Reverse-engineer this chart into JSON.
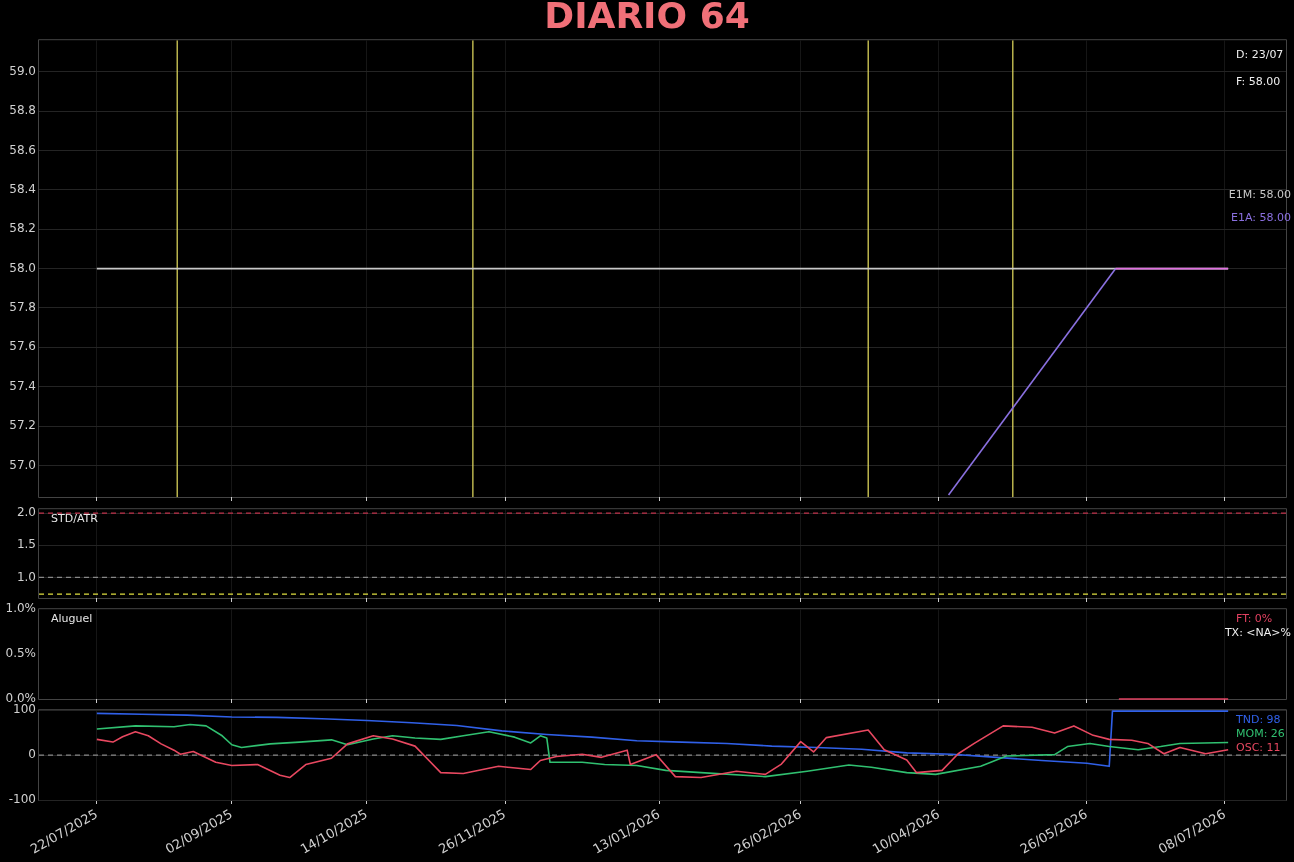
{
  "chart_data": [
    {
      "type": "line",
      "title": "DIARIO 64",
      "xlim": [
        "2025-07-04",
        "2026-07-27"
      ],
      "xticks": [
        {
          "value": "2025-07-22",
          "label": null
        },
        {
          "value": "2025-09-02",
          "label": null
        },
        {
          "value": "2025-10-14",
          "label": null
        },
        {
          "value": "2025-11-26",
          "label": null
        },
        {
          "value": "2026-01-13",
          "label": null
        },
        {
          "value": "2026-02-26",
          "label": null
        },
        {
          "value": "2026-04-10",
          "label": null
        },
        {
          "value": "2026-05-26",
          "label": null
        },
        {
          "value": "2026-07-08",
          "label": null
        }
      ],
      "ylim": [
        56.84,
        59.16
      ],
      "yticks": [
        {
          "value": 57,
          "label": "57.0"
        },
        {
          "value": 57.2,
          "label": "57.2"
        },
        {
          "value": 57.4,
          "label": "57.4"
        },
        {
          "value": 57.6,
          "label": "57.6"
        },
        {
          "value": 57.8,
          "label": "57.8"
        },
        {
          "value": 58,
          "label": "58.0"
        },
        {
          "value": 58.2,
          "label": "58.2"
        },
        {
          "value": 58.4,
          "label": "58.4"
        },
        {
          "value": 58.6,
          "label": "58.6"
        },
        {
          "value": 58.8,
          "label": "58.8"
        },
        {
          "value": 59,
          "label": "59.0"
        }
      ],
      "grid": true,
      "tick_labels": "y",
      "legend": "right",
      "annotations": [
        "D: 23/07",
        "F: 58.00"
      ],
      "ref_lines": [
        {
          "axis": "x",
          "value": "2025-08-16",
          "color": "#e8e060"
        },
        {
          "axis": "x",
          "value": "2025-11-16",
          "color": "#e8e060"
        },
        {
          "axis": "x",
          "value": "2026-03-19",
          "color": "#e8e060"
        },
        {
          "axis": "x",
          "value": "2026-05-03",
          "color": "#e8e060"
        }
      ],
      "series": [
        {
          "name": "E1M: 58.00",
          "color": "#c8c8c8",
          "x": [
            "2025-07-22",
            "2026-07-09"
          ],
          "values": [
            58,
            58
          ]
        },
        {
          "name": "E1A: 58.00",
          "color": "#8a70e0",
          "x": [
            "2026-04-13",
            "2026-06-04"
          ],
          "values": [
            56.85,
            58
          ]
        },
        {
          "color": "#e070e0",
          "x": [
            "2026-06-04",
            "2026-07-09"
          ],
          "values": [
            58,
            58
          ]
        }
      ]
    },
    {
      "type": "line",
      "subtitle": "STD/ATR",
      "xlim": [
        "2025-07-04",
        "2026-07-27"
      ],
      "xticks": [
        {
          "value": "2025-07-22",
          "label": null
        },
        {
          "value": "2025-09-02",
          "label": null
        },
        {
          "value": "2025-10-14",
          "label": null
        },
        {
          "value": "2025-11-26",
          "label": null
        },
        {
          "value": "2026-01-13",
          "label": null
        },
        {
          "value": "2026-02-26",
          "label": null
        },
        {
          "value": "2026-04-10",
          "label": null
        },
        {
          "value": "2026-05-26",
          "label": null
        },
        {
          "value": "2026-07-08",
          "label": null
        }
      ],
      "ylim": [
        0.68,
        2.06
      ],
      "yticks": [
        {
          "value": 1,
          "label": "1.0"
        },
        {
          "value": 1.5,
          "label": "1.5"
        },
        {
          "value": 2,
          "label": "2.0"
        }
      ],
      "grid": true,
      "tick_labels": "y",
      "ref_lines": [
        {
          "axis": "y",
          "value": 2,
          "color": "#c0304a",
          "line_style": "dashed"
        },
        {
          "axis": "y",
          "value": 1,
          "color": "#888888",
          "line_style": "dashed"
        },
        {
          "axis": "y",
          "value": 0.74,
          "color": "#e0e040",
          "line_style": "dashed"
        }
      ]
    },
    {
      "type": "line",
      "subtitle": "Aluguel",
      "xlim": [
        "2025-07-04",
        "2026-07-27"
      ],
      "xticks": [
        {
          "value": "2025-07-22",
          "label": null
        },
        {
          "value": "2025-09-02",
          "label": null
        },
        {
          "value": "2025-10-14",
          "label": null
        },
        {
          "value": "2025-11-26",
          "label": null
        },
        {
          "value": "2026-01-13",
          "label": null
        },
        {
          "value": "2026-02-26",
          "label": null
        },
        {
          "value": "2026-04-10",
          "label": null
        },
        {
          "value": "2026-05-26",
          "label": null
        },
        {
          "value": "2026-07-08",
          "label": null
        }
      ],
      "ylim": [
        0,
        1
      ],
      "yticks": [
        {
          "value": 0,
          "label": "0.0%"
        },
        {
          "value": 0.5,
          "label": "0.5%"
        },
        {
          "value": 1,
          "label": "1.0%"
        }
      ],
      "grid": "x",
      "tick_labels": "y",
      "legend": "top right",
      "annotations": [
        "TX: <NA>%"
      ],
      "series": [
        {
          "name": "FT: 0%",
          "color": "#e04060",
          "x": [
            "2026-06-05",
            "2026-07-09"
          ],
          "values": [
            0,
            0
          ]
        }
      ]
    },
    {
      "type": "line",
      "xlim": [
        "2025-07-04",
        "2026-07-27"
      ],
      "xticks": [
        {
          "value": "2025-07-22",
          "label": "22/07/2025"
        },
        {
          "value": "2025-09-02",
          "label": "02/09/2025"
        },
        {
          "value": "2025-10-14",
          "label": "14/10/2025"
        },
        {
          "value": "2025-11-26",
          "label": "26/11/2025"
        },
        {
          "value": "2026-01-13",
          "label": "13/01/2026"
        },
        {
          "value": "2026-02-26",
          "label": "26/02/2026"
        },
        {
          "value": "2026-04-10",
          "label": "10/04/2026"
        },
        {
          "value": "2026-05-26",
          "label": "26/05/2026"
        },
        {
          "value": "2026-07-08",
          "label": "08/07/2026"
        }
      ],
      "ylim": [
        -100,
        100
      ],
      "yticks": [
        -100,
        0,
        100
      ],
      "grid": true,
      "legend": "top right",
      "ref_lines": [
        {
          "axis": "y",
          "value": 0,
          "color": "#888888",
          "line_style": "dashed"
        }
      ],
      "series": [
        {
          "name": "TND: 98",
          "color": "#3060e8",
          "x": [
            "2025-07-22",
            "2025-08-05",
            "2025-08-19",
            "2025-09-02",
            "2025-09-16",
            "2025-09-30",
            "2025-10-14",
            "2025-10-28",
            "2025-11-11",
            "2025-11-25",
            "2025-12-09",
            "2025-12-23",
            "2026-01-06",
            "2026-01-20",
            "2026-02-03",
            "2026-02-17",
            "2026-03-03",
            "2026-03-17",
            "2026-03-31",
            "2026-04-14",
            "2026-04-28",
            "2026-05-12",
            "2026-05-26",
            "2026-06-02",
            "2026-06-03",
            "2026-07-09"
          ],
          "values": [
            93,
            91,
            89,
            85,
            84,
            81,
            77,
            72,
            66,
            54,
            46,
            40,
            32,
            29,
            26,
            20,
            17,
            13,
            5,
            2,
            -5,
            -12,
            -18,
            -25,
            98,
            98
          ]
        },
        {
          "name": "MOM: 26",
          "color": "#30c070",
          "x": [
            "2025-07-22",
            "2025-08-03",
            "2025-08-15",
            "2025-08-20",
            "2025-08-25",
            "2025-08-30",
            "2025-09-02",
            "2025-09-05",
            "2025-09-14",
            "2025-09-23",
            "2025-10-03",
            "2025-10-08",
            "2025-10-16",
            "2025-10-22",
            "2025-10-29",
            "2025-11-06",
            "2025-11-13",
            "2025-11-21",
            "2025-11-29",
            "2025-12-04",
            "2025-12-07",
            "2025-12-09",
            "2025-12-10",
            "2025-12-20",
            "2025-12-27",
            "2026-01-06",
            "2026-01-15",
            "2026-01-26",
            "2026-02-15",
            "2026-02-28",
            "2026-03-13",
            "2026-03-20",
            "2026-03-31",
            "2026-04-09",
            "2026-04-23",
            "2026-05-01",
            "2026-05-16",
            "2026-05-20",
            "2026-05-27",
            "2026-06-02",
            "2026-06-11",
            "2026-06-18",
            "2026-06-24",
            "2026-07-09"
          ],
          "values": [
            58,
            65,
            63,
            68,
            65,
            43,
            23,
            17,
            25,
            29,
            34,
            23,
            36,
            43,
            38,
            35,
            43,
            52,
            40,
            27,
            43,
            38,
            -16,
            -16,
            -21,
            -23,
            -34,
            -39,
            -48,
            -36,
            -22,
            -27,
            -39,
            -43,
            -25,
            -2,
            1,
            19,
            26,
            19,
            12,
            19,
            26,
            28
          ]
        },
        {
          "name": "OSC: 11",
          "color": "#e84860",
          "x": [
            "2025-07-22",
            "2025-07-27",
            "2025-07-30",
            "2025-08-03",
            "2025-08-07",
            "2025-08-11",
            "2025-08-15",
            "2025-08-17",
            "2025-08-21",
            "2025-08-28",
            "2025-09-02",
            "2025-09-10",
            "2025-09-17",
            "2025-09-20",
            "2025-09-25",
            "2025-10-03",
            "2025-10-08",
            "2025-10-16",
            "2025-10-22",
            "2025-10-29",
            "2025-11-06",
            "2025-11-13",
            "2025-11-24",
            "2025-12-04",
            "2025-12-07",
            "2025-12-12",
            "2025-12-20",
            "2025-12-26",
            "2026-01-03",
            "2026-01-04",
            "2026-01-12",
            "2026-01-18",
            "2026-01-26",
            "2026-02-06",
            "2026-02-15",
            "2026-02-20",
            "2026-02-26",
            "2026-03-02",
            "2026-03-06",
            "2026-03-19",
            "2026-03-24",
            "2026-03-31",
            "2026-04-03",
            "2026-04-11",
            "2026-04-16",
            "2026-04-21",
            "2026-04-30",
            "2026-05-09",
            "2026-05-16",
            "2026-05-22",
            "2026-05-28",
            "2026-06-02",
            "2026-06-09",
            "2026-06-14",
            "2026-06-19",
            "2026-06-24",
            "2026-07-02",
            "2026-07-09"
          ],
          "values": [
            35,
            29,
            41,
            52,
            43,
            25,
            11,
            2,
            8,
            -16,
            -23,
            -21,
            -45,
            -50,
            -21,
            -7,
            25,
            43,
            36,
            20,
            -39,
            -41,
            -25,
            -32,
            -12,
            -3,
            2,
            -5,
            11,
            -21,
            1,
            -48,
            -50,
            -36,
            -43,
            -20,
            30,
            7,
            39,
            56,
            12,
            -11,
            -39,
            -34,
            3,
            26,
            65,
            62,
            49,
            65,
            44,
            35,
            33,
            26,
            3,
            17,
            3,
            12
          ]
        }
      ]
    }
  ]
}
